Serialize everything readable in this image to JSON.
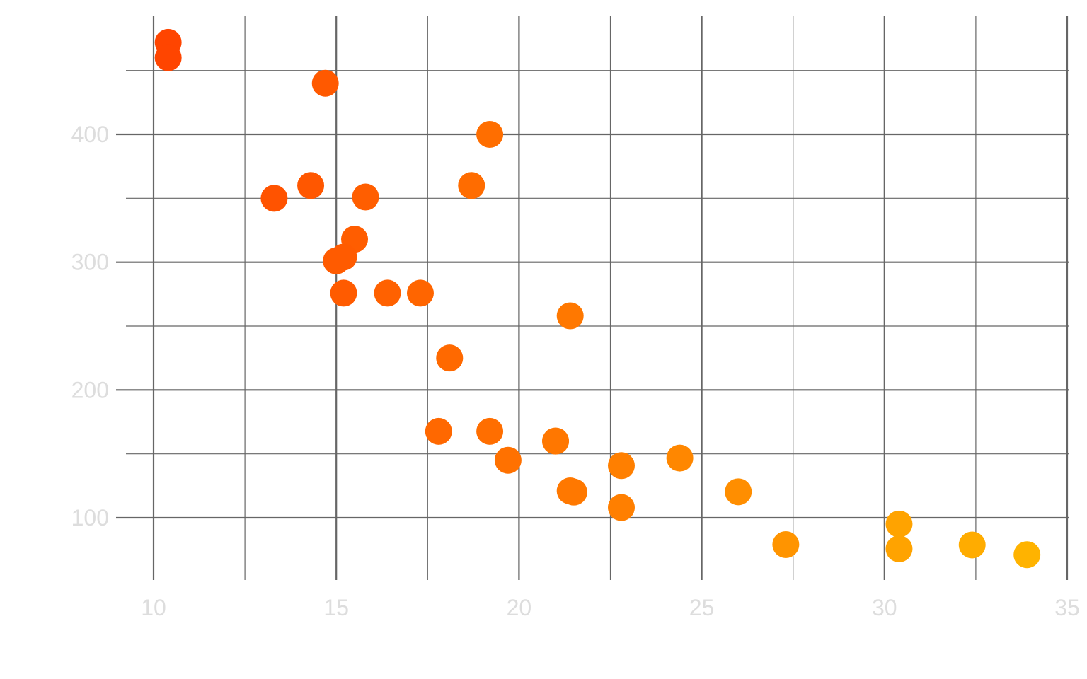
{
  "chart_data": {
    "type": "scatter",
    "title": "",
    "xlabel": "",
    "ylabel": "",
    "xlim": [
      10,
      35
    ],
    "ylim": [
      52,
      485
    ],
    "x_ticks": [
      "10",
      "15",
      "20",
      "25",
      "30",
      "35"
    ],
    "y_ticks": [
      "100",
      "200",
      "300",
      "400"
    ],
    "grid": true,
    "legend": "none",
    "colors": {
      "tick_text": "#dddddd",
      "grid": "#666666",
      "point_low": "#ff4500",
      "point_high": "#ffb300"
    },
    "points": [
      {
        "x": 21.0,
        "y": 160
      },
      {
        "x": 21.0,
        "y": 160
      },
      {
        "x": 22.8,
        "y": 108
      },
      {
        "x": 21.4,
        "y": 258
      },
      {
        "x": 18.7,
        "y": 360
      },
      {
        "x": 18.1,
        "y": 225
      },
      {
        "x": 14.3,
        "y": 360
      },
      {
        "x": 24.4,
        "y": 146.7
      },
      {
        "x": 22.8,
        "y": 140.8
      },
      {
        "x": 19.2,
        "y": 167.6
      },
      {
        "x": 17.8,
        "y": 167.6
      },
      {
        "x": 16.4,
        "y": 275.8
      },
      {
        "x": 17.3,
        "y": 275.8
      },
      {
        "x": 15.2,
        "y": 275.8
      },
      {
        "x": 10.4,
        "y": 472
      },
      {
        "x": 10.4,
        "y": 460
      },
      {
        "x": 14.7,
        "y": 440
      },
      {
        "x": 32.4,
        "y": 78.7
      },
      {
        "x": 30.4,
        "y": 75.7
      },
      {
        "x": 33.9,
        "y": 71.1
      },
      {
        "x": 21.5,
        "y": 120.1
      },
      {
        "x": 15.5,
        "y": 318
      },
      {
        "x": 15.2,
        "y": 304
      },
      {
        "x": 13.3,
        "y": 350
      },
      {
        "x": 19.2,
        "y": 400
      },
      {
        "x": 27.3,
        "y": 79
      },
      {
        "x": 26.0,
        "y": 120.3
      },
      {
        "x": 30.4,
        "y": 95.1
      },
      {
        "x": 15.8,
        "y": 351
      },
      {
        "x": 19.7,
        "y": 145
      },
      {
        "x": 15.0,
        "y": 301
      },
      {
        "x": 21.4,
        "y": 121
      }
    ]
  }
}
